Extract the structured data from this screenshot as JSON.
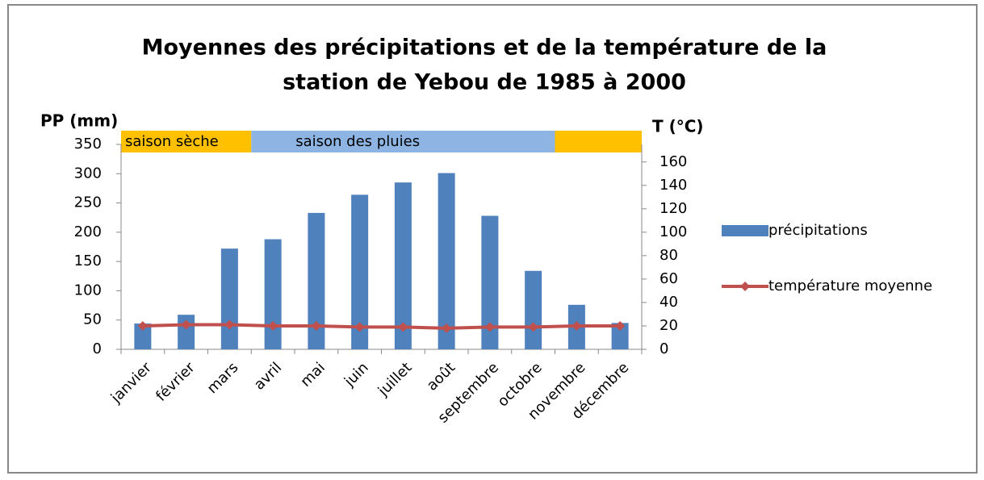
{
  "chart_data": {
    "type": "bar_line",
    "title": [
      "Moyennes des précipitations et de la température de la",
      "station de Yebou de 1985 à 2000"
    ],
    "y_label": "PP (mm)",
    "y2_label": "T (°C)",
    "categories": [
      "janvier",
      "février",
      "mars",
      "avril",
      "mai",
      "juin",
      "juillet",
      "août",
      "septembre",
      "octobre",
      "novembre",
      "décembre"
    ],
    "series": [
      {
        "name": "précipitations",
        "type": "bar",
        "color": "#4f81bd",
        "values": [
          44,
          59,
          172,
          188,
          233,
          264,
          285,
          301,
          228,
          134,
          76,
          45
        ]
      },
      {
        "name": "température moyenne",
        "type": "line",
        "axis": "y2",
        "color": "#c0504d",
        "values": [
          20,
          21,
          21,
          20,
          20,
          19,
          19,
          18,
          19,
          19,
          20,
          20
        ]
      }
    ],
    "ylim": [
      0,
      350
    ],
    "yticks": [
      0,
      50,
      100,
      150,
      200,
      250,
      300,
      350
    ],
    "y2lim": [
      0,
      175
    ],
    "y2ticks": [
      0,
      20,
      40,
      60,
      80,
      100,
      120,
      140,
      160
    ],
    "bands": [
      {
        "label": "saison sèche",
        "from": 0,
        "to": 3,
        "color": "#ffc000"
      },
      {
        "label": "saison des pluies",
        "from": 3,
        "to": 10,
        "color": "#8db4e2"
      },
      {
        "from": 10,
        "to": 12,
        "color": "#ffc000"
      }
    ],
    "legend": "right"
  }
}
